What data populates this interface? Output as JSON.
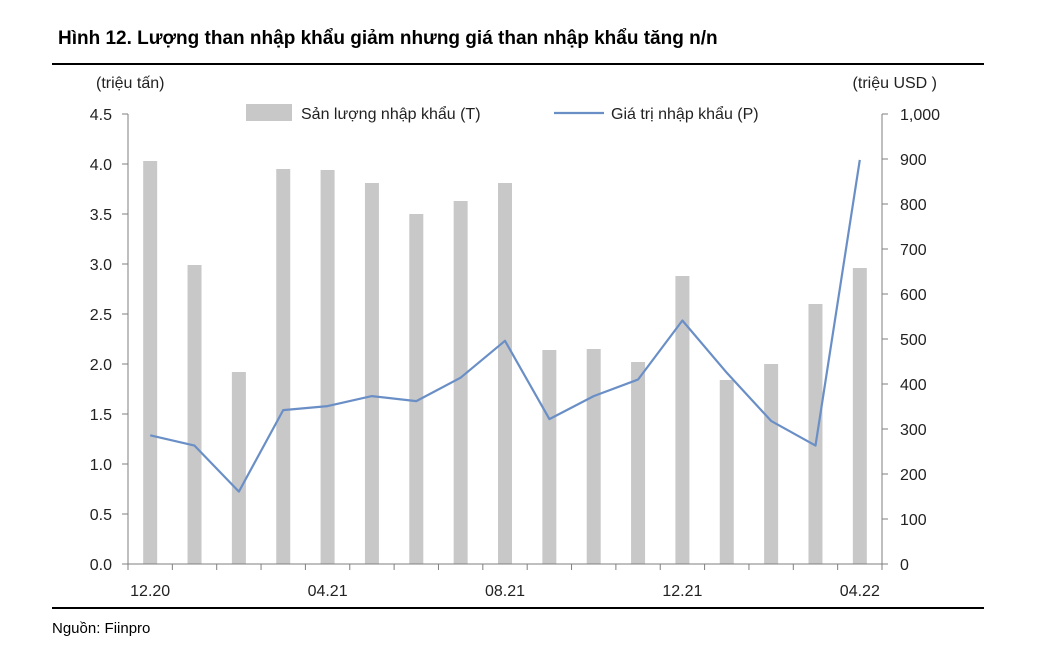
{
  "figure": {
    "title": "Hình 12. Lượng than nhập khẩu giảm nhưng giá than nhập khẩu tăng n/n",
    "source": "Nguồn: Fiinpro"
  },
  "chart_data": {
    "type": "bar+line",
    "categories": [
      "12.20",
      "01.21",
      "02.21",
      "03.21",
      "04.21",
      "05.21",
      "06.21",
      "07.21",
      "08.21",
      "09.21",
      "10.21",
      "11.21",
      "12.21",
      "01.22",
      "02.22",
      "03.22",
      "04.22"
    ],
    "x_tick_labels": [
      {
        "index": 0,
        "label": "12.20"
      },
      {
        "index": 4,
        "label": "04.21"
      },
      {
        "index": 8,
        "label": "08.21"
      },
      {
        "index": 12,
        "label": "12.21"
      },
      {
        "index": 16,
        "label": "04.22"
      }
    ],
    "series": [
      {
        "name": "Sản lượng nhập khẩu (T)",
        "kind": "bar",
        "axis": "left",
        "color": "#c8c8c8",
        "values": [
          4.03,
          2.99,
          1.92,
          3.95,
          3.94,
          3.81,
          3.5,
          3.63,
          3.81,
          2.14,
          2.15,
          2.02,
          2.88,
          1.84,
          2.0,
          2.6,
          2.96
        ]
      },
      {
        "name": "Giá trị nhập khẩu (P)",
        "kind": "line",
        "axis": "right",
        "color": "#6a8fc6",
        "values": [
          286,
          263,
          161,
          342,
          351,
          373,
          362,
          414,
          496,
          322,
          373,
          410,
          541,
          425,
          318,
          263,
          898
        ]
      }
    ],
    "left_axis": {
      "unit": "(triệu tấn)",
      "ylim": [
        0,
        4.5
      ],
      "ticks": [
        "0.0",
        "0.5",
        "1.0",
        "1.5",
        "2.0",
        "2.5",
        "3.0",
        "3.5",
        "4.0",
        "4.5"
      ]
    },
    "right_axis": {
      "unit": "(triệu USD )",
      "ylim": [
        0,
        1000
      ],
      "ticks": [
        "0",
        "100",
        "200",
        "300",
        "400",
        "500",
        "600",
        "700",
        "800",
        "900",
        "1,000"
      ]
    },
    "grid": false,
    "legend": "top"
  }
}
